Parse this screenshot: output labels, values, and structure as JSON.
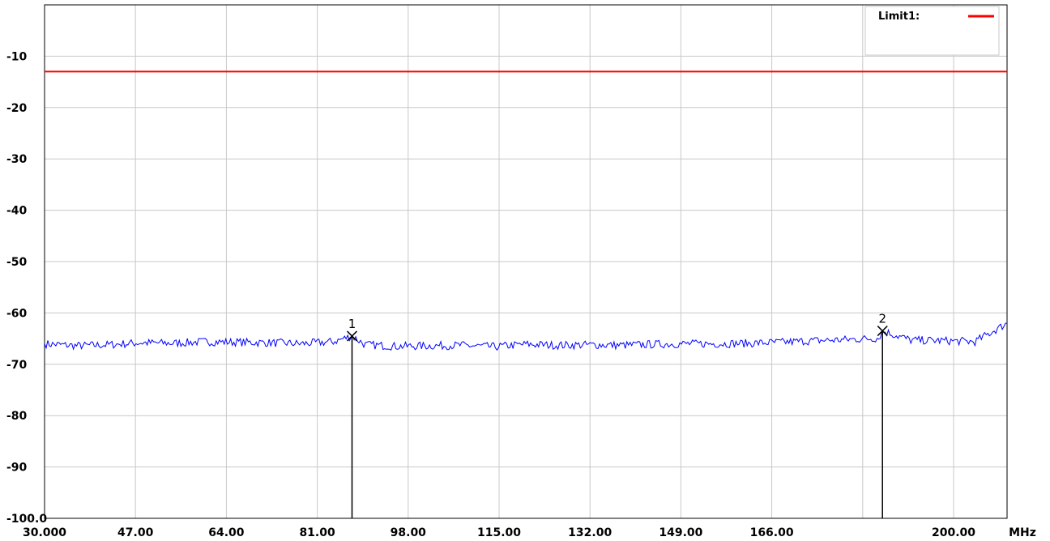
{
  "chart_data": {
    "type": "line",
    "title": "",
    "xlabel": "MHz",
    "ylabel": "",
    "xlim": [
      30.0,
      210.0
    ],
    "ylim": [
      -100.0,
      0.0
    ],
    "x_ticks": [
      "30.000",
      "47.00",
      "64.00",
      "81.00",
      "98.00",
      "115.00",
      "132.00",
      "149.00",
      "166.00",
      "200.00"
    ],
    "x_tick_values": [
      30,
      47,
      64,
      81,
      98,
      115,
      132,
      149,
      166,
      200
    ],
    "y_ticks": [
      "-10",
      "-20",
      "-30",
      "-40",
      "-50",
      "-60",
      "-70",
      "-80",
      "-90",
      "-100.0"
    ],
    "y_tick_values": [
      -10,
      -20,
      -30,
      -40,
      -50,
      -60,
      -70,
      -80,
      -90,
      -100
    ],
    "grid": true,
    "limit_line": {
      "name": "Limit1:",
      "value": -13,
      "color": "#ff0000"
    },
    "series": [
      {
        "color": "#0000ff",
        "x": [
          30,
          36,
          42,
          48,
          54,
          60,
          66,
          72,
          78,
          84,
          87.5,
          90,
          96,
          102,
          108,
          114,
          120,
          126,
          132,
          138,
          144,
          150,
          156,
          162,
          168,
          174,
          180,
          186,
          186.7,
          192,
          198,
          204,
          210
        ],
        "y": [
          -66.0,
          -66.4,
          -66.2,
          -65.8,
          -65.9,
          -65.6,
          -65.7,
          -65.8,
          -66.0,
          -65.6,
          -64.5,
          -66.2,
          -66.5,
          -66.4,
          -66.3,
          -66.6,
          -66.1,
          -66.3,
          -66.2,
          -66.3,
          -66.1,
          -66.0,
          -66.0,
          -65.9,
          -65.7,
          -65.4,
          -65.2,
          -64.9,
          -63.5,
          -65.3,
          -65.4,
          -65.6,
          -62.0
        ]
      }
    ],
    "markers": [
      {
        "label": "1",
        "x": 87.5,
        "y": -64.5
      },
      {
        "label": "2",
        "x": 186.7,
        "y": -63.5
      }
    ],
    "legend_position": "top-right"
  }
}
